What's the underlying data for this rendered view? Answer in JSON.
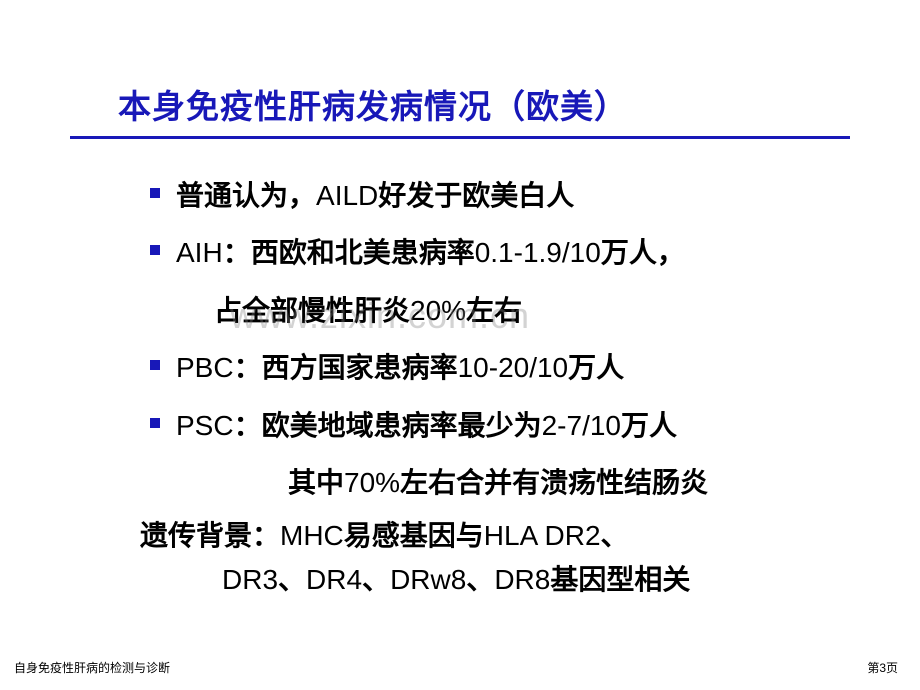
{
  "title": "本身免疫性肝病发病情况（欧美）",
  "bullets": [
    {
      "text": "普通认为，AILD好发于欧美白人"
    },
    {
      "text": "AIH：西欧和北美患病率0.1-1.9/10万人，",
      "sub": "占全部慢性肝炎20%左右"
    },
    {
      "text": "PBC：西方国家患病率10-20/10万人"
    },
    {
      "text": "PSC：欧美地域患病率最少为2-7/10万人"
    }
  ],
  "indent_line": "其中70%左右合并有溃疡性结肠炎",
  "heredity_line1": "遗传背景：MHC易感基因与HLA DR2、",
  "heredity_line2": "DR3、DR4、DRw8、DR8基因型相关",
  "watermark": "www.zixin.com.cn",
  "footer_left": "自身免疫性肝病的检测与诊断",
  "footer_right": "第3页",
  "colors": {
    "title_color": "#1818b8",
    "bullet_color": "#1818b8",
    "text_color": "#000000",
    "background": "#ffffff",
    "watermark_color": "rgba(128,128,128,0.35)"
  },
  "fonts": {
    "title_size": 33,
    "body_size": 28,
    "footer_size": 12
  }
}
